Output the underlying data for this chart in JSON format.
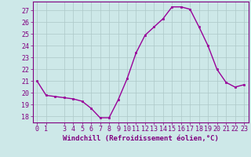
{
  "x": [
    0,
    1,
    2,
    3,
    4,
    5,
    6,
    7,
    8,
    9,
    10,
    11,
    12,
    13,
    14,
    15,
    16,
    17,
    18,
    19,
    20,
    21,
    22,
    23
  ],
  "y": [
    21.0,
    19.8,
    19.7,
    19.6,
    19.5,
    19.3,
    18.7,
    17.9,
    17.9,
    19.4,
    21.2,
    23.4,
    24.9,
    25.6,
    26.3,
    27.3,
    27.3,
    27.1,
    25.6,
    24.0,
    22.0,
    20.9,
    20.5,
    20.7
  ],
  "line_color": "#990099",
  "marker": "s",
  "marker_size": 2.0,
  "linewidth": 1.0,
  "xlabel": "Windchill (Refroidissement éolien,°C)",
  "xlabel_fontsize": 6.5,
  "ylim": [
    17.5,
    27.75
  ],
  "yticks": [
    18,
    19,
    20,
    21,
    22,
    23,
    24,
    25,
    26,
    27
  ],
  "xlim": [
    -0.5,
    23.5
  ],
  "xticks": [
    0,
    1,
    3,
    4,
    5,
    6,
    7,
    8,
    9,
    10,
    11,
    12,
    13,
    14,
    15,
    16,
    17,
    18,
    19,
    20,
    21,
    22,
    23
  ],
  "grid_color": "#adc8c8",
  "bg_color": "#cde8e8",
  "tick_fontsize": 6.0,
  "tick_color": "#800080",
  "label_color": "#800080",
  "spine_color": "#800080"
}
